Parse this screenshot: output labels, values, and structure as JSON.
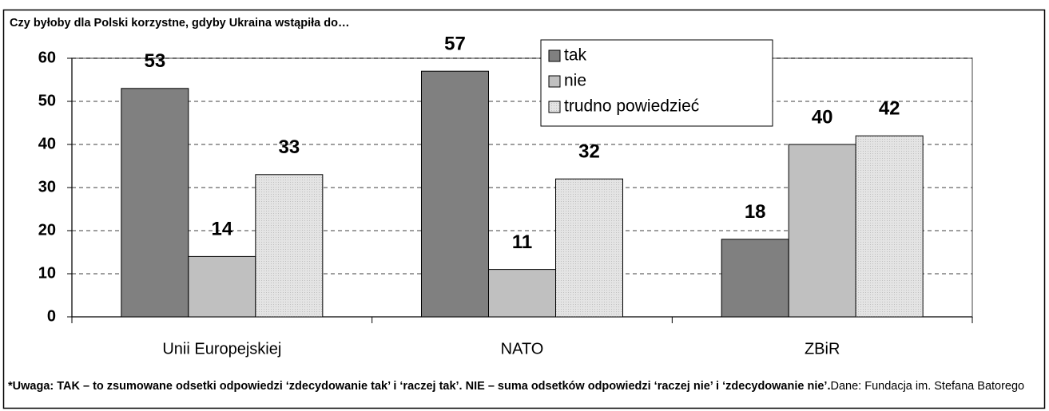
{
  "chart_data": {
    "type": "bar",
    "title": "Czy byłoby dla Polski korzystne, gdyby Ukraina wstąpiła do…",
    "categories": [
      "Unii Europejskiej",
      "NATO",
      "ZBiR"
    ],
    "series": [
      {
        "name": "tak",
        "color": "#808080",
        "values": [
          53,
          57,
          18
        ]
      },
      {
        "name": "nie",
        "color": "#c0c0c0",
        "values": [
          14,
          11,
          40
        ]
      },
      {
        "name": "trudno powiedzieć",
        "color": "#e4e4e4",
        "values": [
          33,
          32,
          42
        ]
      }
    ],
    "ylim": [
      0,
      60
    ],
    "yticks": [
      0,
      10,
      20,
      30,
      40,
      50,
      60
    ],
    "grid": true,
    "footnote": "*Uwaga: TAK – to zsumowane odsetki odpowiedzi ‘zdecydowanie tak’ i ‘raczej tak’. NIE – suma odsetków odpowiedzi ‘raczej nie’ i ‘zdecydowanie nie’.",
    "source": "Dane: Fundacja im. Stefana Batorego"
  }
}
